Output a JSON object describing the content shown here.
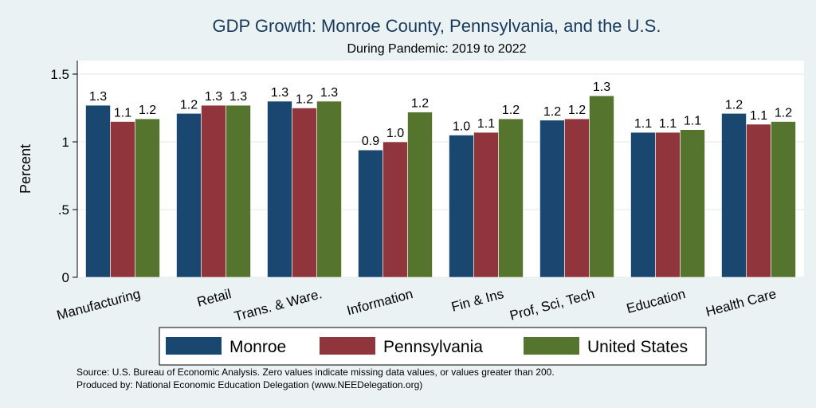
{
  "chart_data": {
    "type": "bar",
    "title": "GDP Growth: Monroe County, Pennsylvania, and the U.S.",
    "subtitle": "During Pandemic: 2019 to 2022",
    "ylabel": "Percent",
    "xlabel": "",
    "ylim": [
      0,
      1.6
    ],
    "yticks": [
      0,
      0.5,
      1,
      1.5
    ],
    "ytick_labels": [
      "0",
      ".5",
      "1",
      "1.5"
    ],
    "grid": true,
    "legend_position": "bottom",
    "categories": [
      "Manufacturing",
      "Retail",
      "Trans. & Ware.",
      "Information",
      "Fin & Ins",
      "Prof, Sci, Tech",
      "Education",
      "Health Care"
    ],
    "series": [
      {
        "name": "Monroe",
        "color": "#1a476f",
        "values": [
          1.27,
          1.21,
          1.3,
          0.94,
          1.05,
          1.16,
          1.07,
          1.21
        ],
        "labels": [
          "1.3",
          "1.2",
          "1.3",
          "0.9",
          "1.0",
          "1.2",
          "1.1",
          "1.2"
        ]
      },
      {
        "name": "Pennsylvania",
        "color": "#90353b",
        "values": [
          1.15,
          1.27,
          1.25,
          1.0,
          1.07,
          1.17,
          1.07,
          1.13
        ],
        "labels": [
          "1.1",
          "1.3",
          "1.2",
          "1.0",
          "1.1",
          "1.2",
          "1.1",
          "1.1"
        ]
      },
      {
        "name": "United States",
        "color": "#55752f",
        "values": [
          1.17,
          1.27,
          1.3,
          1.22,
          1.17,
          1.34,
          1.09,
          1.15
        ],
        "labels": [
          "1.2",
          "1.3",
          "1.3",
          "1.2",
          "1.2",
          "1.3",
          "1.1",
          "1.2"
        ]
      }
    ]
  },
  "source_lines": [
    "Source: U.S. Bureau of Economic Analysis. Zero values indicate missing data values, or values greater than 200.",
    "Produced by: National Economic Education Delegation (www.NEEDelegation.org)"
  ]
}
